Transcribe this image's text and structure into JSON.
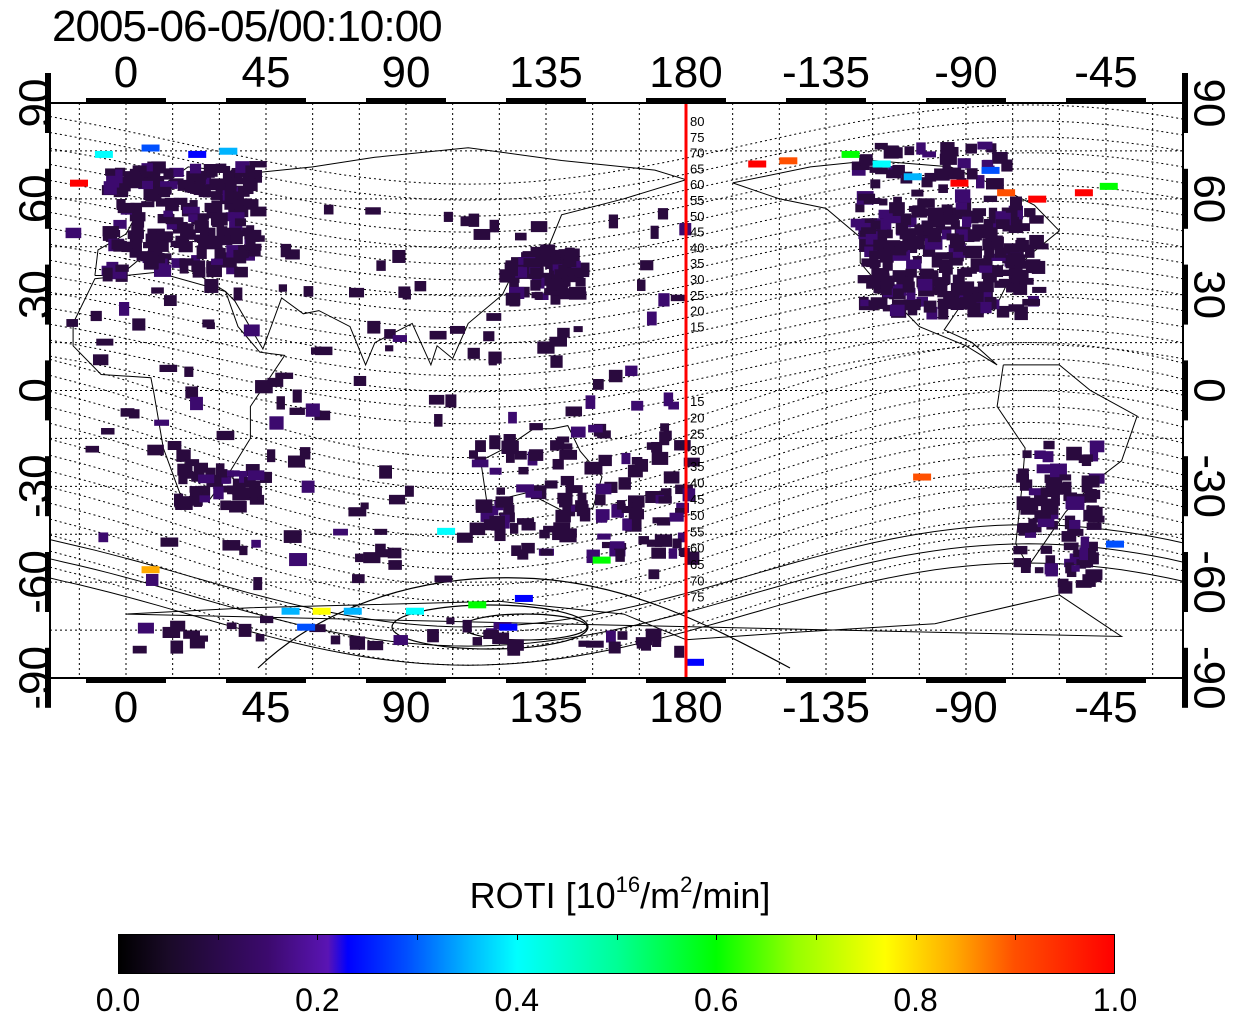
{
  "header": {
    "timestamp": "2005-06-05/00:10:00"
  },
  "map": {
    "x_axis": {
      "ticks": [
        "0",
        "45",
        "90",
        "135",
        "180",
        "-135",
        "-90",
        "-45"
      ]
    },
    "y_axis": {
      "ticks": [
        "90",
        "60",
        "30",
        "0",
        "-30",
        "-60",
        "-90"
      ]
    },
    "dip_contour_labels_north": [
      "80",
      "75",
      "70",
      "65",
      "60",
      "55",
      "50",
      "45",
      "40",
      "35",
      "30",
      "25",
      "20",
      "15"
    ],
    "dip_contour_labels_south": [
      "15",
      "20",
      "25",
      "30",
      "35",
      "40",
      "45",
      "50",
      "55",
      "60",
      "65",
      "70",
      "75"
    ],
    "meridian_line_color": "#ff0000",
    "coast_color": "#000000",
    "ocean_color": "#ffffff"
  },
  "colorbar": {
    "title": "ROTI  [10",
    "exp1": "16",
    "unit_mid": "/m",
    "exp2": "2",
    "unit_end": "/min]",
    "ticks": [
      "0.0",
      "0.2",
      "0.4",
      "0.6",
      "0.8",
      "1.0"
    ],
    "colors": [
      "#000000",
      "#3c0a6e",
      "#0000ff",
      "#00ffff",
      "#00ff00",
      "#ffff00",
      "#ff0000"
    ]
  }
}
